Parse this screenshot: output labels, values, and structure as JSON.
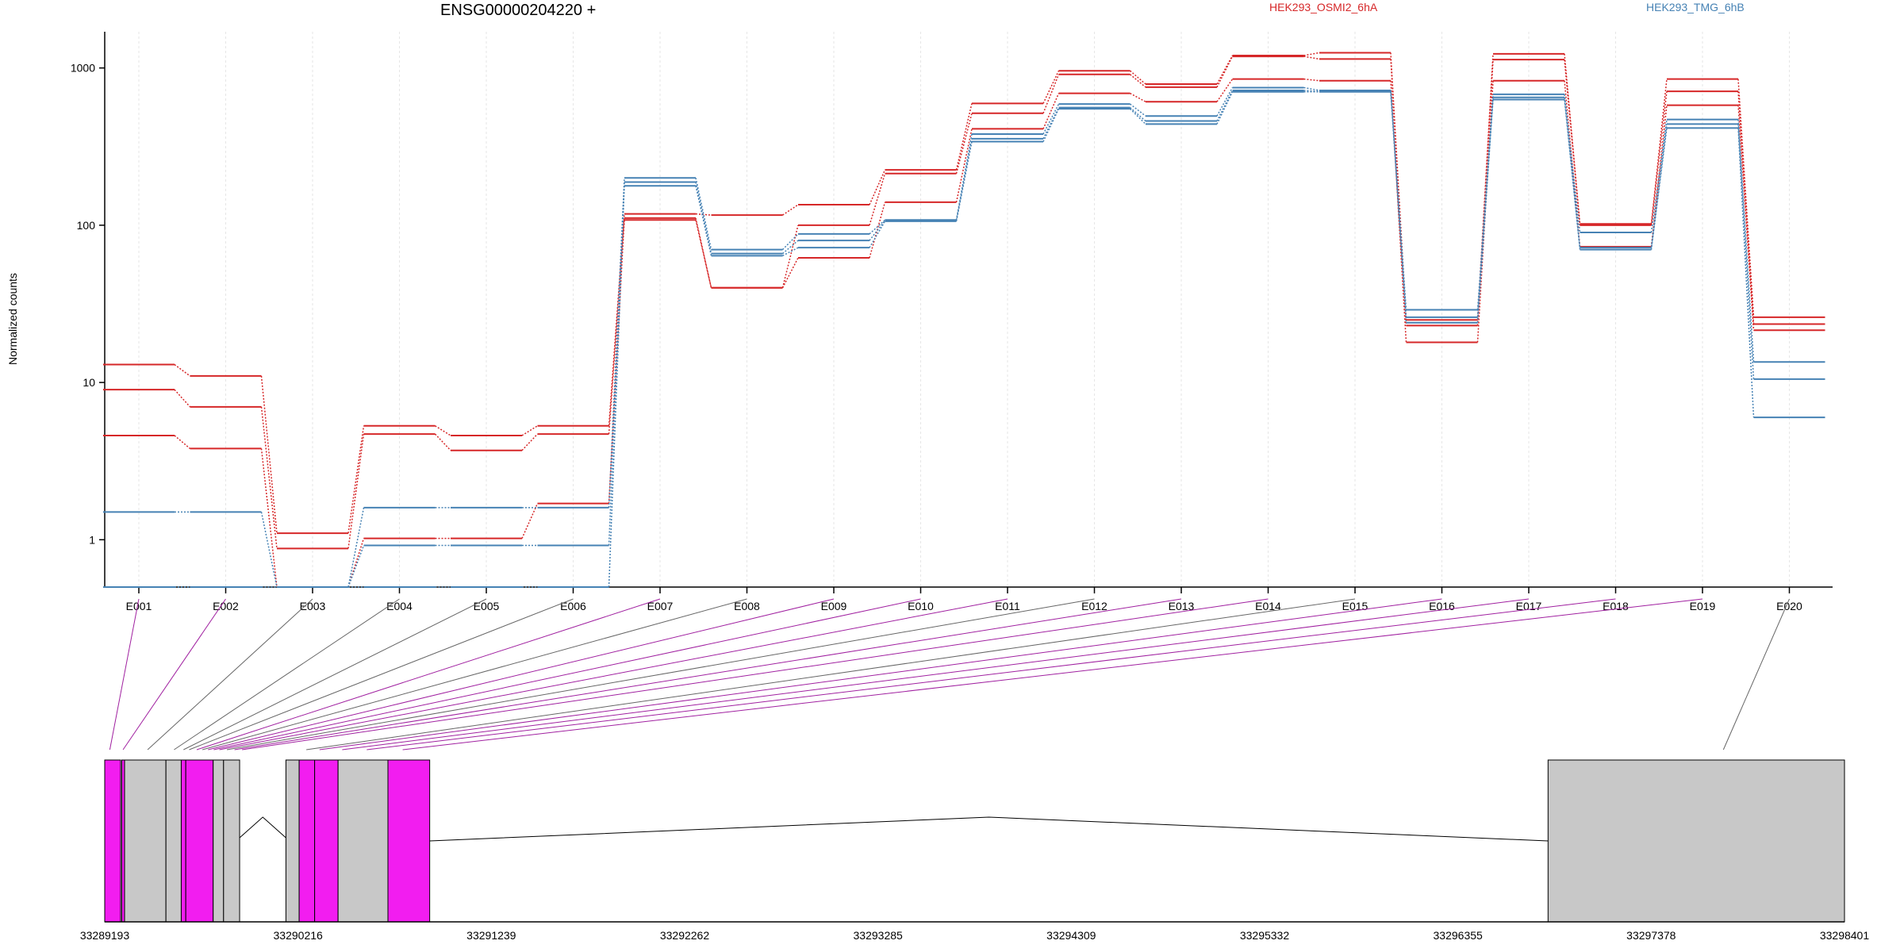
{
  "chart_data": {
    "type": "line",
    "title": "ENSG00000204220 +",
    "ylabel": "Normalized counts",
    "yscale": "log",
    "ylim": [
      0.5,
      1700
    ],
    "yticks": [
      1,
      10,
      100,
      1000
    ],
    "ytick_labels": [
      "1",
      "10",
      "100",
      "1000"
    ],
    "grid": true,
    "legend_position": "top",
    "categories": [
      "E001",
      "E002",
      "E003",
      "E004",
      "E005",
      "E006",
      "E007",
      "E008",
      "E009",
      "E010",
      "E011",
      "E012",
      "E013",
      "E014",
      "E015",
      "E016",
      "E017",
      "E018",
      "E019",
      "E020"
    ],
    "series": [
      {
        "name": "HEK293_OSMI2_6hA",
        "group": "HEK293_OSMI2_6hA",
        "color": "#d62728",
        "values": [
          13,
          11,
          1.1,
          5.3,
          4.6,
          5.3,
          118,
          116,
          135,
          225,
          595,
          960,
          790,
          1200,
          1250,
          25,
          1230,
          102,
          850,
          26
        ]
      },
      {
        "group": "HEK293_OSMI2_6hA",
        "color": "#d62728",
        "values": [
          9,
          7,
          0.88,
          4.7,
          3.7,
          4.7,
          108,
          40,
          100,
          213,
          515,
          910,
          755,
          1185,
          1140,
          23,
          1130,
          100,
          710,
          23.5
        ]
      },
      {
        "group": "HEK293_OSMI2_6hA",
        "color": "#d62728",
        "values": [
          4.6,
          3.8,
          0.5,
          1.02,
          1.02,
          1.7,
          111,
          40,
          62,
          140,
          410,
          690,
          610,
          850,
          830,
          18,
          830,
          73,
          580,
          21.5
        ]
      },
      {
        "name": "HEK293_TMG_6hB",
        "group": "HEK293_TMG_6hB",
        "color": "#4682b4",
        "values": [
          1.5,
          1.5,
          0.5,
          1.6,
          1.6,
          1.6,
          200,
          70,
          88,
          108,
          380,
          590,
          495,
          750,
          720,
          29,
          680,
          90,
          470,
          13.5
        ]
      },
      {
        "group": "HEK293_TMG_6hB",
        "color": "#4682b4",
        "values": [
          0.5,
          0.5,
          0.5,
          0.92,
          0.92,
          0.92,
          188,
          66,
          80,
          107,
          355,
          560,
          460,
          720,
          710,
          26,
          650,
          72,
          440,
          10.5
        ]
      },
      {
        "group": "HEK293_TMG_6hB",
        "color": "#4682b4",
        "values": [
          0.5,
          0.5,
          0.5,
          0.5,
          0.5,
          0.5,
          178,
          64,
          72,
          106,
          340,
          550,
          440,
          705,
          705,
          24,
          630,
          70,
          415,
          6
        ]
      }
    ],
    "gene_model": {
      "axis_range": [
        33289193,
        33298401
      ],
      "tick_labels": [
        "33289193",
        "33290216",
        "33291239",
        "33292262",
        "33293285",
        "33294309",
        "33295332",
        "33296355",
        "33297378",
        "33298401"
      ],
      "exon_blocks": [
        {
          "start": 33289193,
          "end": 33289277,
          "highlight": true
        },
        {
          "start": 33289283,
          "end": 33289298,
          "highlight": true
        },
        {
          "start": 33289298,
          "end": 33289517,
          "highlight": false
        },
        {
          "start": 33289517,
          "end": 33289598,
          "highlight": false
        },
        {
          "start": 33289598,
          "end": 33289622,
          "highlight": true
        },
        {
          "start": 33289622,
          "end": 33289767,
          "highlight": true
        },
        {
          "start": 33289767,
          "end": 33289822,
          "highlight": false
        },
        {
          "start": 33289822,
          "end": 33289907,
          "highlight": false
        },
        {
          "start": 33290152,
          "end": 33290222,
          "highlight": false
        },
        {
          "start": 33290222,
          "end": 33290304,
          "highlight": true
        },
        {
          "start": 33290304,
          "end": 33290428,
          "highlight": true
        },
        {
          "start": 33290428,
          "end": 33290692,
          "highlight": false
        },
        {
          "start": 33290692,
          "end": 33290913,
          "highlight": true
        },
        {
          "start": 33296832,
          "end": 33298401,
          "highlight": false
        }
      ]
    }
  }
}
